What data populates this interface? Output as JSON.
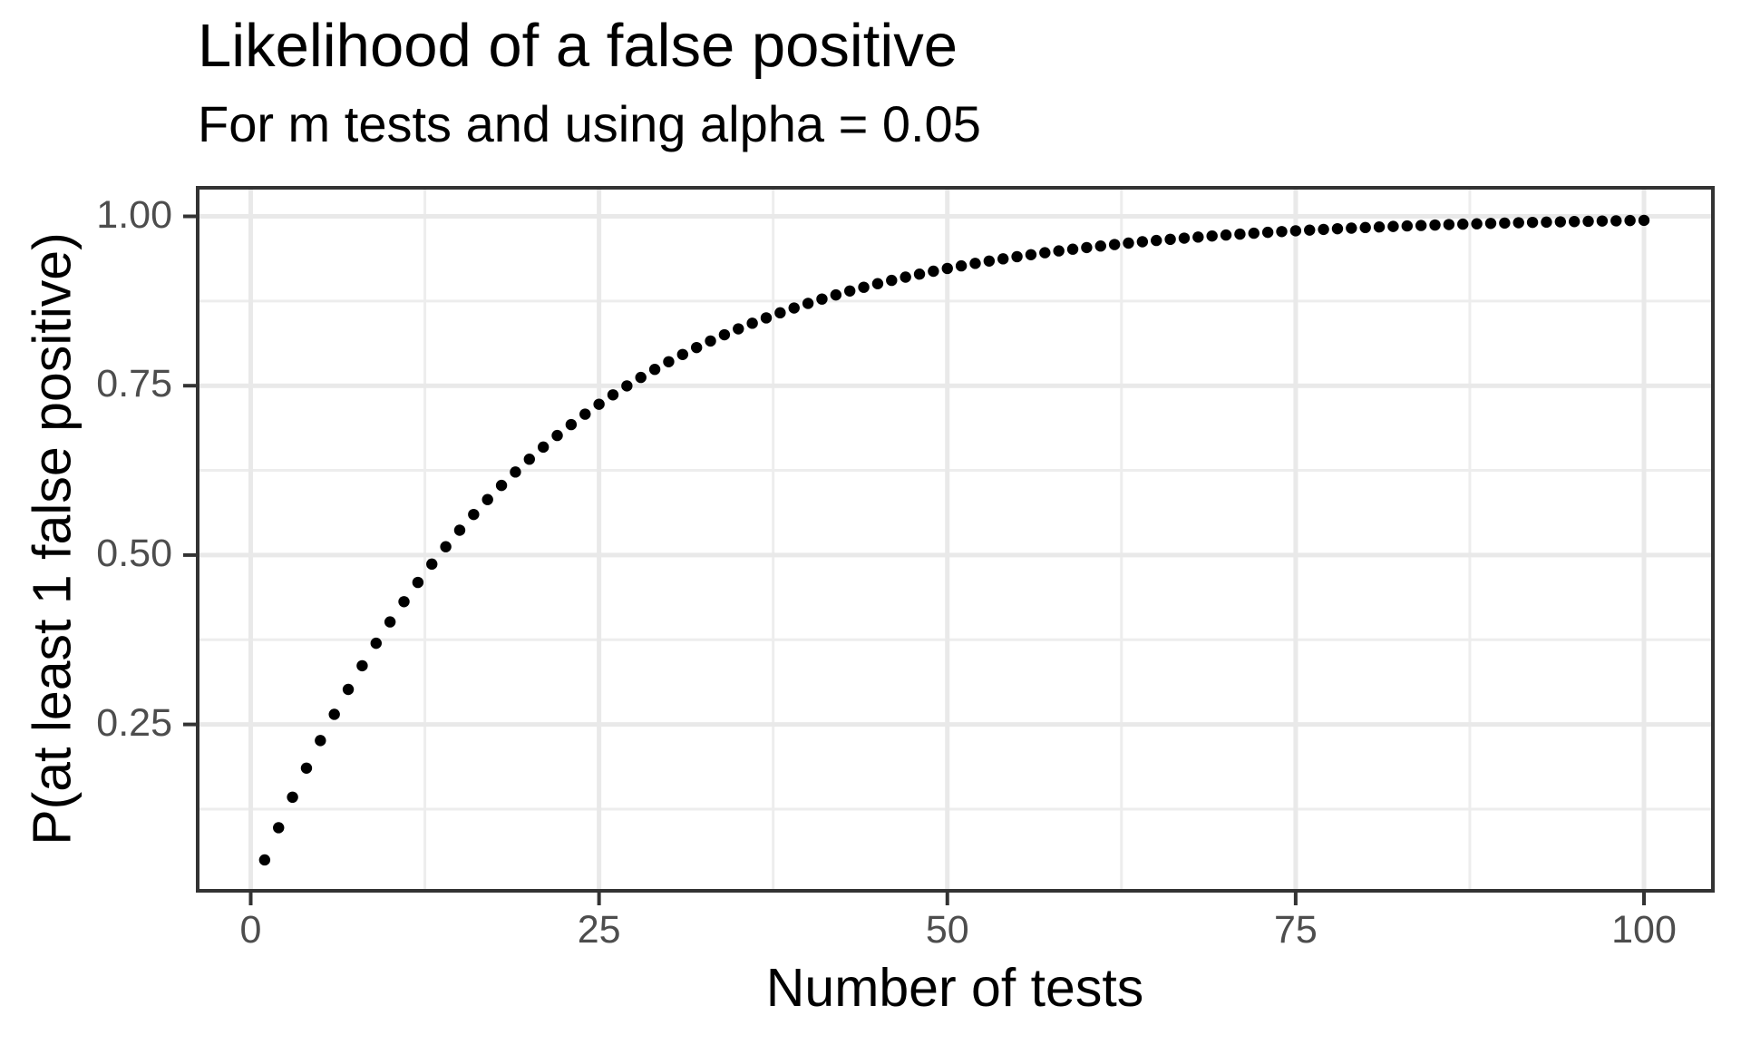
{
  "chart_data": {
    "type": "scatter",
    "title": "Likelihood of a false positive",
    "subtitle": "For m tests and using alpha = 0.05",
    "xlabel": "Number of tests",
    "ylabel": "P(at least 1 false positive)",
    "legend_position": "none",
    "grid": "major+minor",
    "alpha": 0.05,
    "formula": "P(at least 1 false positive) = 1 - (1 - 0.05)^m",
    "x_axis": {
      "ticks": [
        0,
        25,
        50,
        75,
        100
      ],
      "tick_labels": [
        "0",
        "25",
        "50",
        "75",
        "100"
      ],
      "minor_breaks": [
        12.5,
        37.5,
        62.5,
        87.5
      ],
      "range": [
        -3.9,
        104.95
      ]
    },
    "y_axis": {
      "ticks": [
        0.25,
        0.5,
        0.75,
        1.0
      ],
      "tick_labels": [
        "0.25",
        "0.50",
        "0.75",
        "1.00"
      ],
      "minor_breaks": [
        0.125,
        0.375,
        0.625,
        0.875
      ],
      "range": [
        0.003,
        1.043
      ]
    },
    "x": [
      1,
      2,
      3,
      4,
      5,
      6,
      7,
      8,
      9,
      10,
      11,
      12,
      13,
      14,
      15,
      16,
      17,
      18,
      19,
      20,
      21,
      22,
      23,
      24,
      25,
      26,
      27,
      28,
      29,
      30,
      31,
      32,
      33,
      34,
      35,
      36,
      37,
      38,
      39,
      40,
      41,
      42,
      43,
      44,
      45,
      46,
      47,
      48,
      49,
      50,
      51,
      52,
      53,
      54,
      55,
      56,
      57,
      58,
      59,
      60,
      61,
      62,
      63,
      64,
      65,
      66,
      67,
      68,
      69,
      70,
      71,
      72,
      73,
      74,
      75,
      76,
      77,
      78,
      79,
      80,
      81,
      82,
      83,
      84,
      85,
      86,
      87,
      88,
      89,
      90,
      91,
      92,
      93,
      94,
      95,
      96,
      97,
      98,
      99,
      100
    ],
    "y": [
      0.05,
      0.0975,
      0.1426,
      0.1855,
      0.2262,
      0.2649,
      0.3017,
      0.3366,
      0.3698,
      0.4013,
      0.4312,
      0.4596,
      0.4867,
      0.5123,
      0.5367,
      0.5599,
      0.5819,
      0.6028,
      0.6226,
      0.6415,
      0.6594,
      0.6765,
      0.6926,
      0.708,
      0.7226,
      0.7365,
      0.7497,
      0.7622,
      0.7741,
      0.7854,
      0.7961,
      0.8063,
      0.816,
      0.8252,
      0.8339,
      0.8422,
      0.8501,
      0.8576,
      0.8647,
      0.8715,
      0.8779,
      0.884,
      0.8898,
      0.8953,
      0.9006,
      0.9055,
      0.9103,
      0.9147,
      0.919,
      0.9231,
      0.9269,
      0.9306,
      0.934,
      0.9373,
      0.9405,
      0.9434,
      0.9463,
      0.949,
      0.9515,
      0.9539,
      0.9562,
      0.9584,
      0.9605,
      0.9625,
      0.9644,
      0.9661,
      0.9678,
      0.9694,
      0.971,
      0.9724,
      0.9738,
      0.9751,
      0.9764,
      0.9775,
      0.9787,
      0.9797,
      0.9807,
      0.9817,
      0.9826,
      0.9835,
      0.9843,
      0.9851,
      0.9858,
      0.9865,
      0.9872,
      0.9879,
      0.9885,
      0.989,
      0.9896,
      0.9901,
      0.9906,
      0.9911,
      0.9915,
      0.9919,
      0.9923,
      0.9927,
      0.9931,
      0.9934,
      0.9938,
      0.9941
    ]
  },
  "style": {
    "background_color": "#FFFFFF",
    "panel_background_color": "#FFFFFF",
    "point_color": "#000000",
    "grid_major_color": "#E9E9E9",
    "grid_minor_color": "#EDEDED",
    "panel_border_color": "#333333",
    "tick_mark_color": "#333333",
    "tick_label_color": "#4D4D4D",
    "text_color": "#000000"
  }
}
